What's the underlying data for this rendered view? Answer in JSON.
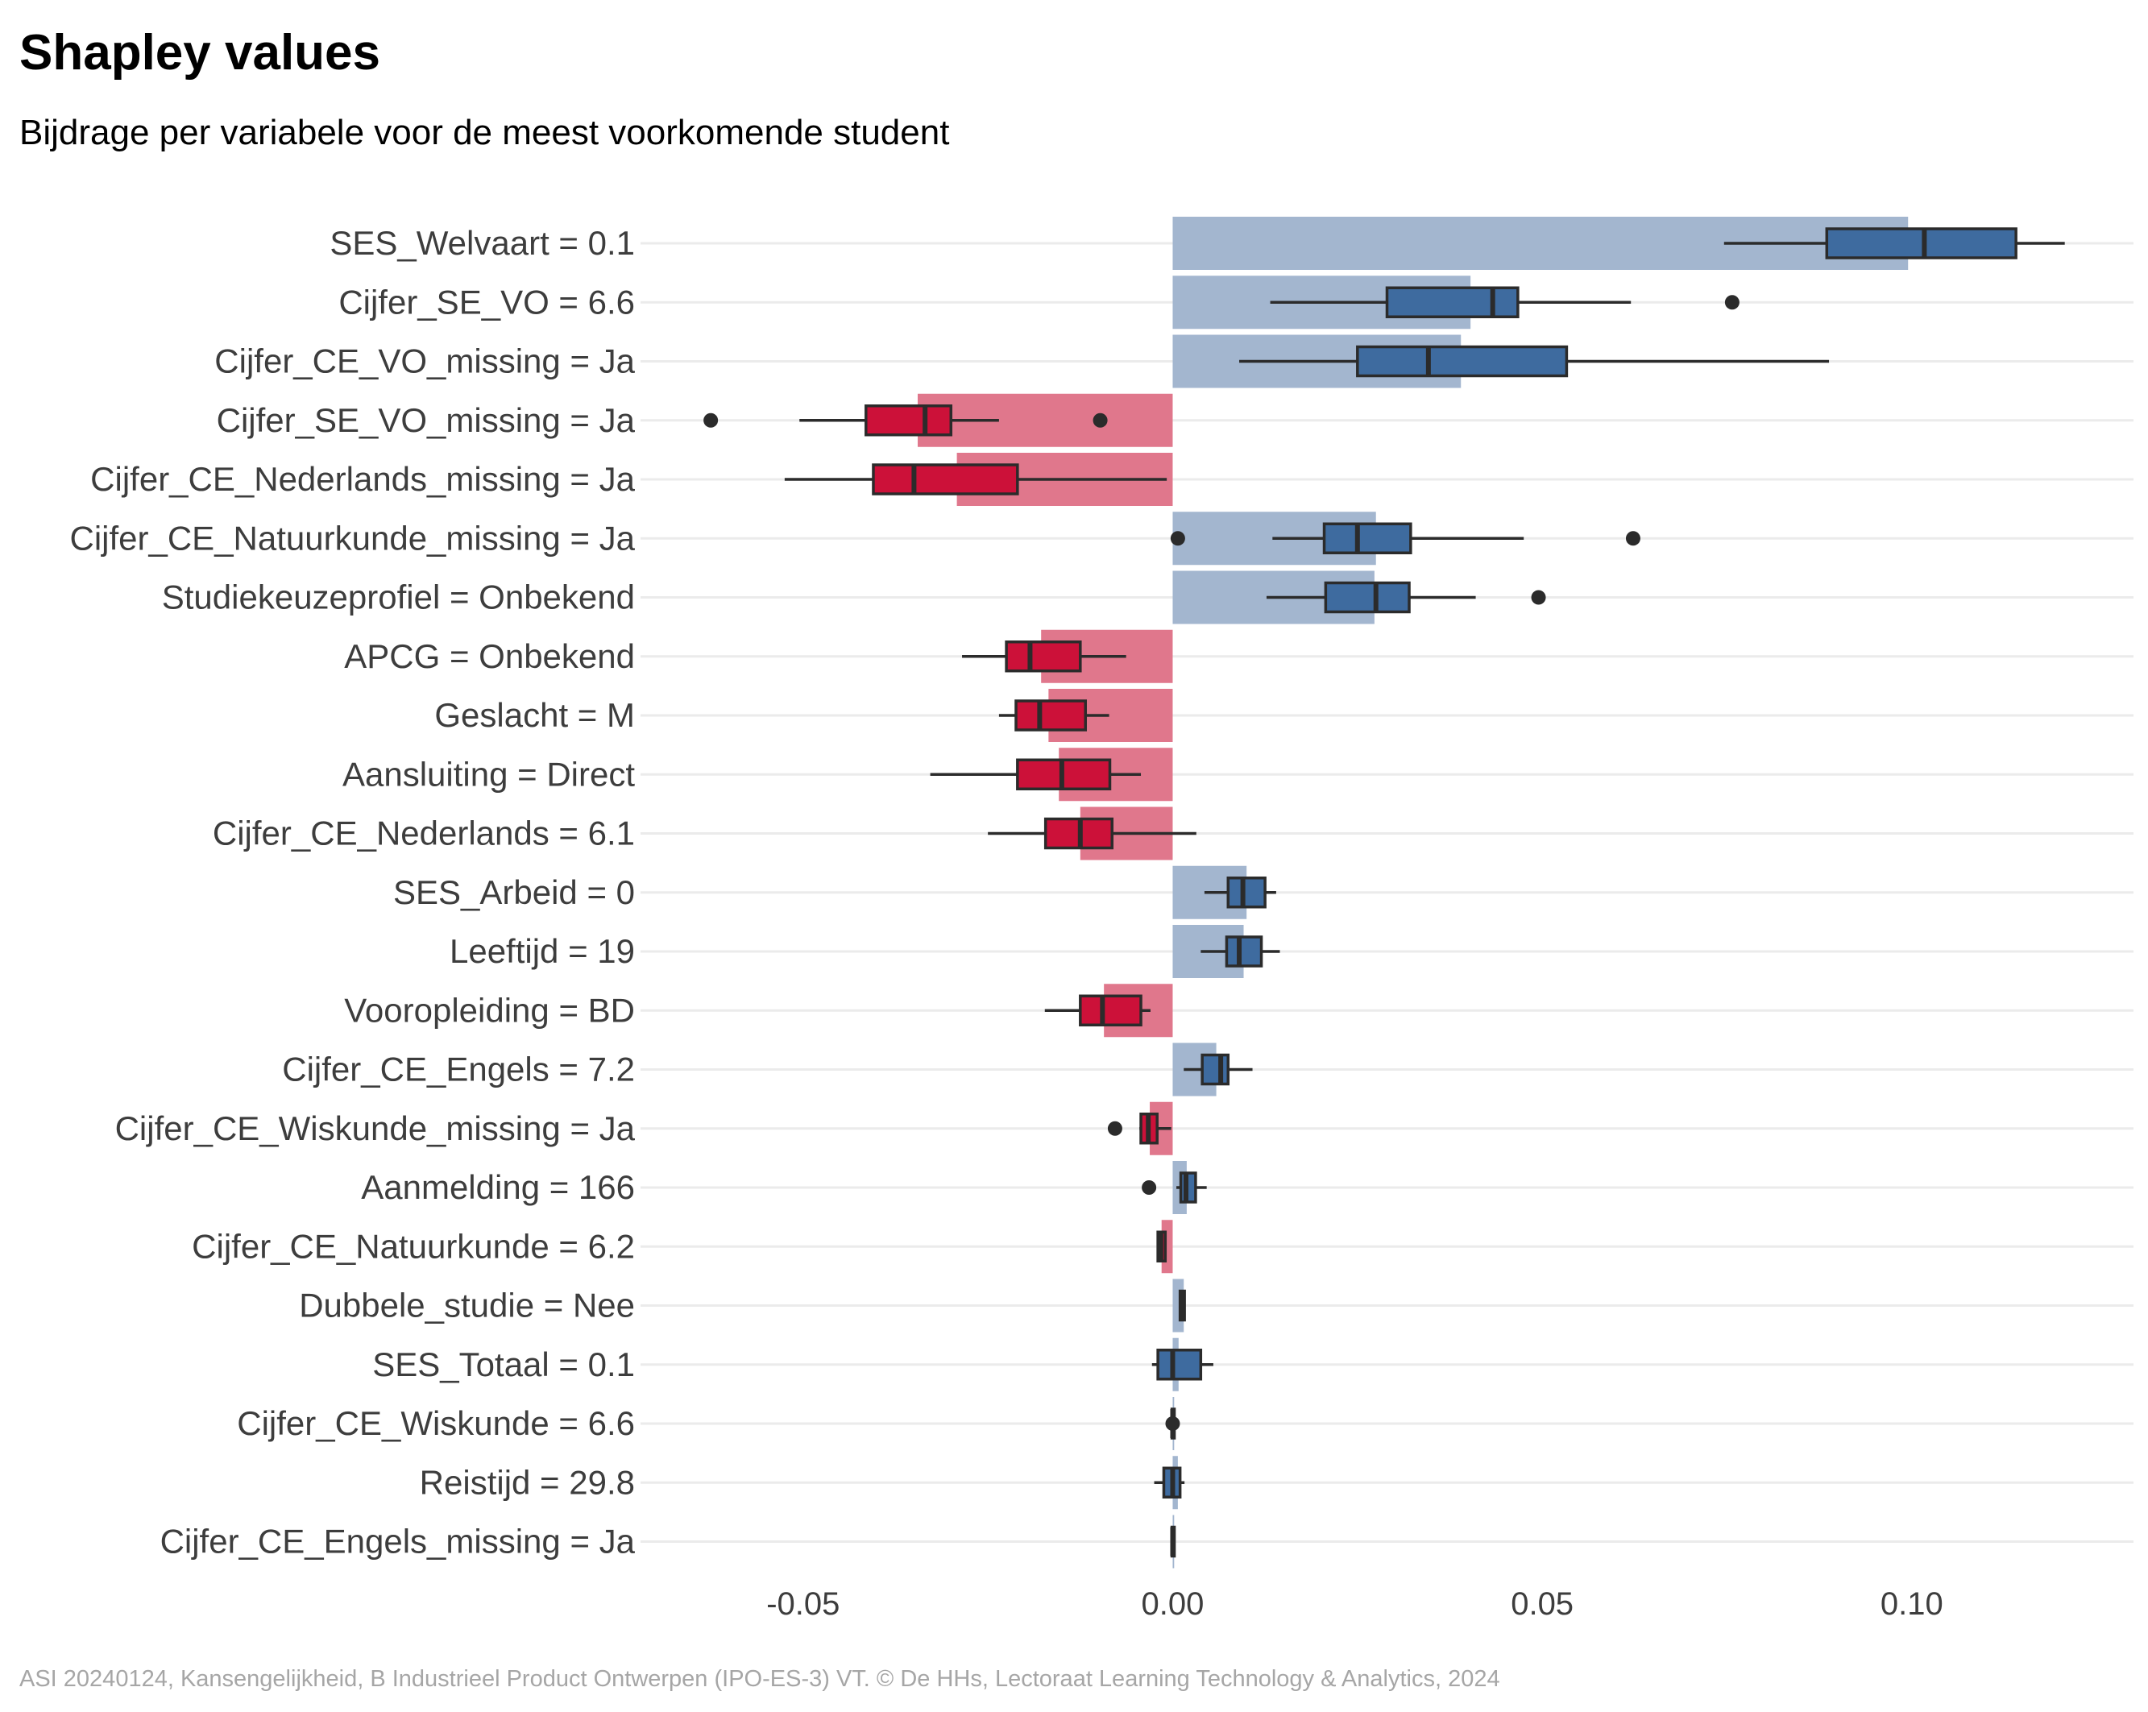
{
  "title": "Shapley values",
  "subtitle": "Bijdrage per variabele voor de meest voorkomende student",
  "caption": "ASI 20240124, Kansengelijkheid, B Industrieel Product Ontwerpen (IPO-ES-3) VT. © De HHs, Lectoraat Learning Technology & Analytics, 2024",
  "colors": {
    "positive_bar": "#a3b6cf",
    "positive_box": "#3e6b9f",
    "negative_bar": "#e0778c",
    "negative_box": "#cc1139",
    "whisker": "#2b2b2b",
    "grid": "#ebebeb"
  },
  "chart_data": {
    "type": "bar",
    "title": "Shapley values",
    "subtitle": "Bijdrage per variabele voor de meest voorkomende student",
    "xlabel": "",
    "ylabel": "",
    "xlim": [
      -0.072,
      0.13
    ],
    "xticks": [
      -0.05,
      0.0,
      0.05,
      0.1
    ],
    "xtick_labels": [
      "-0.05",
      "0.00",
      "0.05",
      "0.10"
    ],
    "grid": "horizontal",
    "legend": "none",
    "categories": [
      "SES_Welvaart = 0.1",
      "Cijfer_SE_VO = 6.6",
      "Cijfer_CE_VO_missing = Ja",
      "Cijfer_SE_VO_missing = Ja",
      "Cijfer_CE_Nederlands_missing = Ja",
      "Cijfer_CE_Natuurkunde_missing = Ja",
      "Studiekeuzeprofiel = Onbekend",
      "APCG = Onbekend",
      "Geslacht = M",
      "Aansluiting = Direct",
      "Cijfer_CE_Nederlands = 6.1",
      "SES_Arbeid = 0",
      "Leeftijd = 19",
      "Vooropleiding = BD",
      "Cijfer_CE_Engels = 7.2",
      "Cijfer_CE_Wiskunde_missing = Ja",
      "Aanmelding = 166",
      "Cijfer_CE_Natuurkunde = 6.2",
      "Dubbele_studie = Nee",
      "SES_Totaal = 0.1",
      "Cijfer_CE_Wiskunde = 6.6",
      "Reistijd = 29.8",
      "Cijfer_CE_Engels_missing = Ja"
    ],
    "values": [
      0.0995,
      0.0403,
      0.039,
      -0.0345,
      -0.0292,
      0.0275,
      0.0273,
      -0.0178,
      -0.0168,
      -0.0154,
      -0.0125,
      0.01,
      0.0096,
      -0.0093,
      0.0059,
      -0.0031,
      0.0019,
      -0.0015,
      0.0015,
      0.0008,
      0.0002,
      0.0007,
      0.0002
    ],
    "boxplots": [
      {
        "min": 0.0746,
        "q1": 0.0885,
        "median": 0.1017,
        "q3": 0.1141,
        "max": 0.1207,
        "outliers": []
      },
      {
        "min": 0.0132,
        "q1": 0.029,
        "median": 0.0433,
        "q3": 0.0467,
        "max": 0.062,
        "outliers": [
          0.0757
        ]
      },
      {
        "min": 0.009,
        "q1": 0.025,
        "median": 0.0346,
        "q3": 0.0533,
        "max": 0.0888,
        "outliers": []
      },
      {
        "min": -0.0505,
        "q1": -0.0415,
        "median": -0.0335,
        "q3": -0.03,
        "max": -0.0235,
        "outliers": [
          -0.0625,
          -0.0098
        ]
      },
      {
        "min": -0.0525,
        "q1": -0.0405,
        "median": -0.035,
        "q3": -0.021,
        "max": -0.0008,
        "outliers": []
      },
      {
        "min": 0.0135,
        "q1": 0.0205,
        "median": 0.025,
        "q3": 0.0322,
        "max": 0.0475,
        "outliers": [
          0.0007,
          0.0623
        ]
      },
      {
        "min": 0.0127,
        "q1": 0.0207,
        "median": 0.0275,
        "q3": 0.032,
        "max": 0.041,
        "outliers": [
          0.0495
        ]
      },
      {
        "min": -0.0285,
        "q1": -0.0225,
        "median": -0.0193,
        "q3": -0.0125,
        "max": -0.0063,
        "outliers": []
      },
      {
        "min": -0.0235,
        "q1": -0.0212,
        "median": -0.018,
        "q3": -0.0118,
        "max": -0.0086,
        "outliers": []
      },
      {
        "min": -0.0328,
        "q1": -0.021,
        "median": -0.015,
        "q3": -0.0085,
        "max": -0.0043,
        "outliers": []
      },
      {
        "min": -0.025,
        "q1": -0.0172,
        "median": -0.0125,
        "q3": -0.0082,
        "max": 0.0032,
        "outliers": []
      },
      {
        "min": 0.0043,
        "q1": 0.0075,
        "median": 0.0095,
        "q3": 0.0125,
        "max": 0.014,
        "outliers": []
      },
      {
        "min": 0.0038,
        "q1": 0.0073,
        "median": 0.009,
        "q3": 0.012,
        "max": 0.0145,
        "outliers": []
      },
      {
        "min": -0.0173,
        "q1": -0.0125,
        "median": -0.0095,
        "q3": -0.0043,
        "max": -0.003,
        "outliers": []
      },
      {
        "min": 0.0015,
        "q1": 0.004,
        "median": 0.0065,
        "q3": 0.0075,
        "max": 0.0108,
        "outliers": []
      },
      {
        "min": -0.0045,
        "q1": -0.0043,
        "median": -0.0033,
        "q3": -0.0021,
        "max": -0.0002,
        "outliers": [
          -0.0078
        ]
      },
      {
        "min": 0.0005,
        "q1": 0.0011,
        "median": 0.0018,
        "q3": 0.0031,
        "max": 0.0046,
        "outliers": [
          -0.0032
        ]
      },
      {
        "min": -0.002,
        "q1": -0.002,
        "median": -0.0016,
        "q3": -0.001,
        "max": -0.001,
        "outliers": []
      },
      {
        "min": 0.001,
        "q1": 0.001,
        "median": 0.0013,
        "q3": 0.0016,
        "max": 0.0016,
        "outliers": []
      },
      {
        "min": -0.0028,
        "q1": -0.002,
        "median": 0.0,
        "q3": 0.0038,
        "max": 0.0055,
        "outliers": []
      },
      {
        "min": -0.0003,
        "q1": -0.0001,
        "median": 0.0,
        "q3": 0.0002,
        "max": 0.0003,
        "outliers": [
          0.0
        ]
      },
      {
        "min": -0.0025,
        "q1": -0.0012,
        "median": 0.0,
        "q3": 0.001,
        "max": 0.0016,
        "outliers": []
      },
      {
        "min": -0.0002,
        "q1": -0.0001,
        "median": 0.0,
        "q3": 0.0001,
        "max": 0.0002,
        "outliers": []
      }
    ]
  }
}
